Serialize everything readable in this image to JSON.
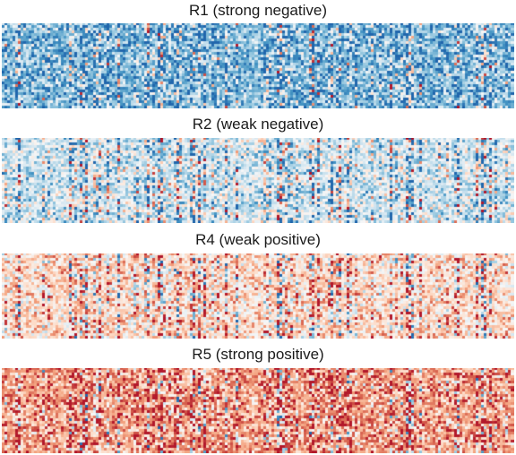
{
  "chart_data": [
    {
      "type": "heatmap",
      "title": "R1 (strong negative)",
      "bias": -0.55,
      "colormap": [
        "#2166ac",
        "#4393c3",
        "#92c5de",
        "#d1e5f0",
        "#f7f7f7",
        "#fddbc7",
        "#f4a582",
        "#d6604d",
        "#b2182b"
      ]
    },
    {
      "type": "heatmap",
      "title": "R2 (weak negative)",
      "bias": -0.22,
      "colormap": [
        "#2166ac",
        "#4393c3",
        "#92c5de",
        "#d1e5f0",
        "#f7f7f7",
        "#fddbc7",
        "#f4a582",
        "#d6604d",
        "#b2182b"
      ]
    },
    {
      "type": "heatmap",
      "title": "R4 (weak positive)",
      "bias": 0.22,
      "colormap": [
        "#2166ac",
        "#4393c3",
        "#92c5de",
        "#d1e5f0",
        "#f7f7f7",
        "#fddbc7",
        "#f4a582",
        "#d6604d",
        "#b2182b"
      ]
    },
    {
      "type": "heatmap",
      "title": "R5 (strong positive)",
      "bias": 0.5,
      "colormap": [
        "#2166ac",
        "#4393c3",
        "#92c5de",
        "#d1e5f0",
        "#f7f7f7",
        "#fddbc7",
        "#f4a582",
        "#d6604d",
        "#b2182b"
      ]
    }
  ]
}
